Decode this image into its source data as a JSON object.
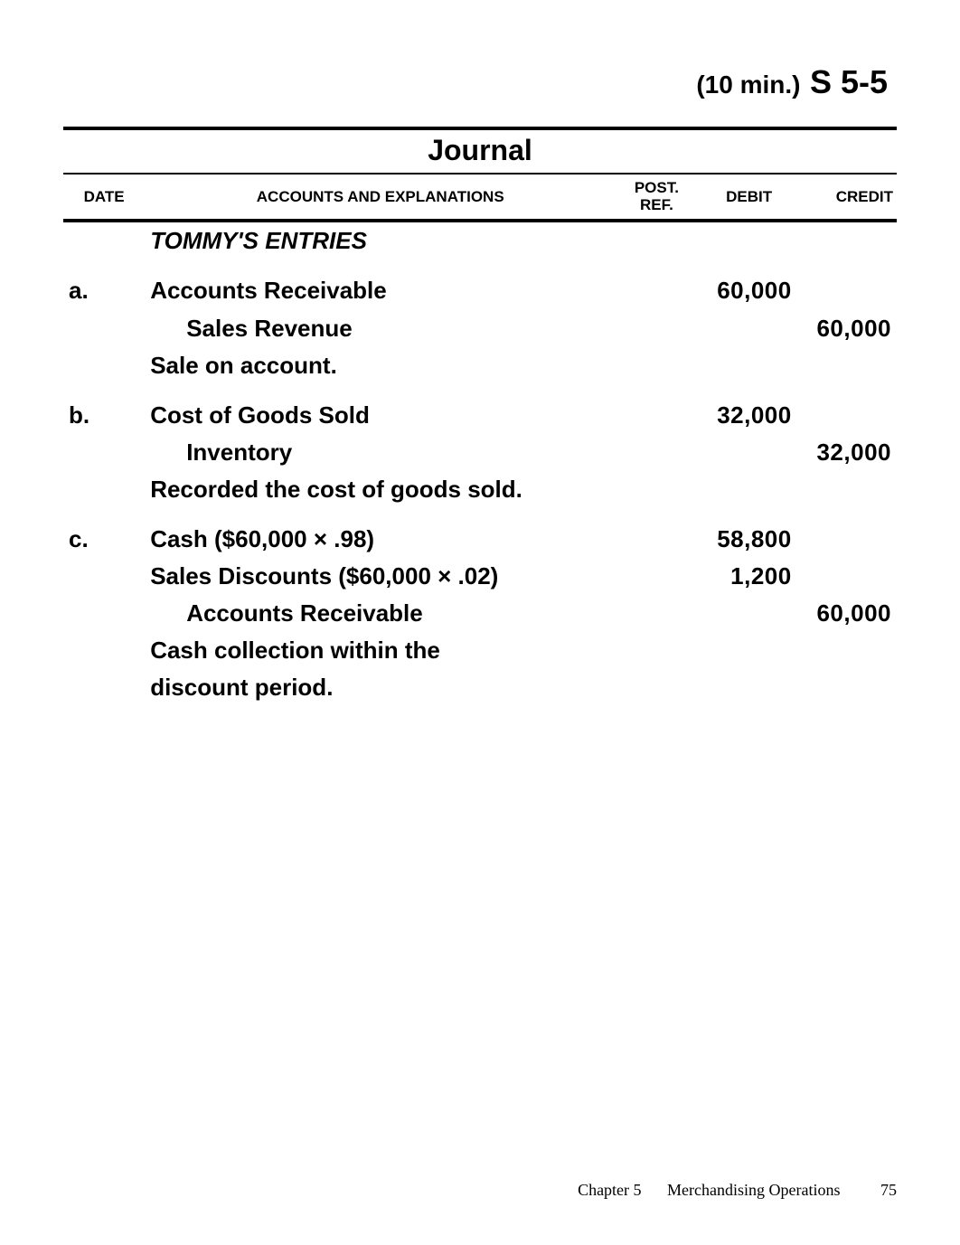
{
  "heading": {
    "time": "(10 min.)",
    "code": "S 5-5"
  },
  "journal": {
    "title": "Journal",
    "columns": {
      "date": "DATE",
      "accounts": "ACCOUNTS AND EXPLANATIONS",
      "postref_line1": "POST.",
      "postref_line2": "REF.",
      "debit": "DEBIT",
      "credit": "CREDIT"
    },
    "entries_title": "TOMMY'S ENTRIES",
    "rows": [
      {
        "date": "a.",
        "account": "Accounts Receivable",
        "indent": 0,
        "debit": "60,000",
        "credit": ""
      },
      {
        "date": "",
        "account": "Sales Revenue",
        "indent": 1,
        "debit": "",
        "credit": "60,000"
      },
      {
        "date": "",
        "account": "Sale on account.",
        "indent": 0,
        "debit": "",
        "credit": ""
      },
      {
        "date": "b.",
        "account": "Cost of Goods Sold",
        "indent": 0,
        "debit": "32,000",
        "credit": ""
      },
      {
        "date": "",
        "account": "Inventory",
        "indent": 1,
        "debit": "",
        "credit": "32,000"
      },
      {
        "date": "",
        "account": "Recorded the cost of goods sold.",
        "indent": 0,
        "debit": "",
        "credit": ""
      },
      {
        "date": "c.",
        "account": "Cash ($60,000 × .98)",
        "indent": 0,
        "debit": "58,800",
        "credit": ""
      },
      {
        "date": "",
        "account": "Sales Discounts ($60,000 × .02)",
        "indent": 0,
        "debit": "1,200",
        "credit": ""
      },
      {
        "date": "",
        "account": "Accounts Receivable",
        "indent": 1,
        "debit": "",
        "credit": "60,000"
      },
      {
        "date": "",
        "account": "Cash collection within the",
        "indent": 0,
        "debit": "",
        "credit": ""
      },
      {
        "date": "",
        "account": "discount period.",
        "indent": 0,
        "debit": "",
        "credit": ""
      }
    ],
    "group_breaks_after": [
      2,
      5
    ]
  },
  "footer": {
    "chapter": "Chapter 5",
    "title": "Merchandising Operations",
    "page": "75"
  },
  "colors": {
    "text": "#000000",
    "background": "#ffffff",
    "rule": "#000000"
  }
}
